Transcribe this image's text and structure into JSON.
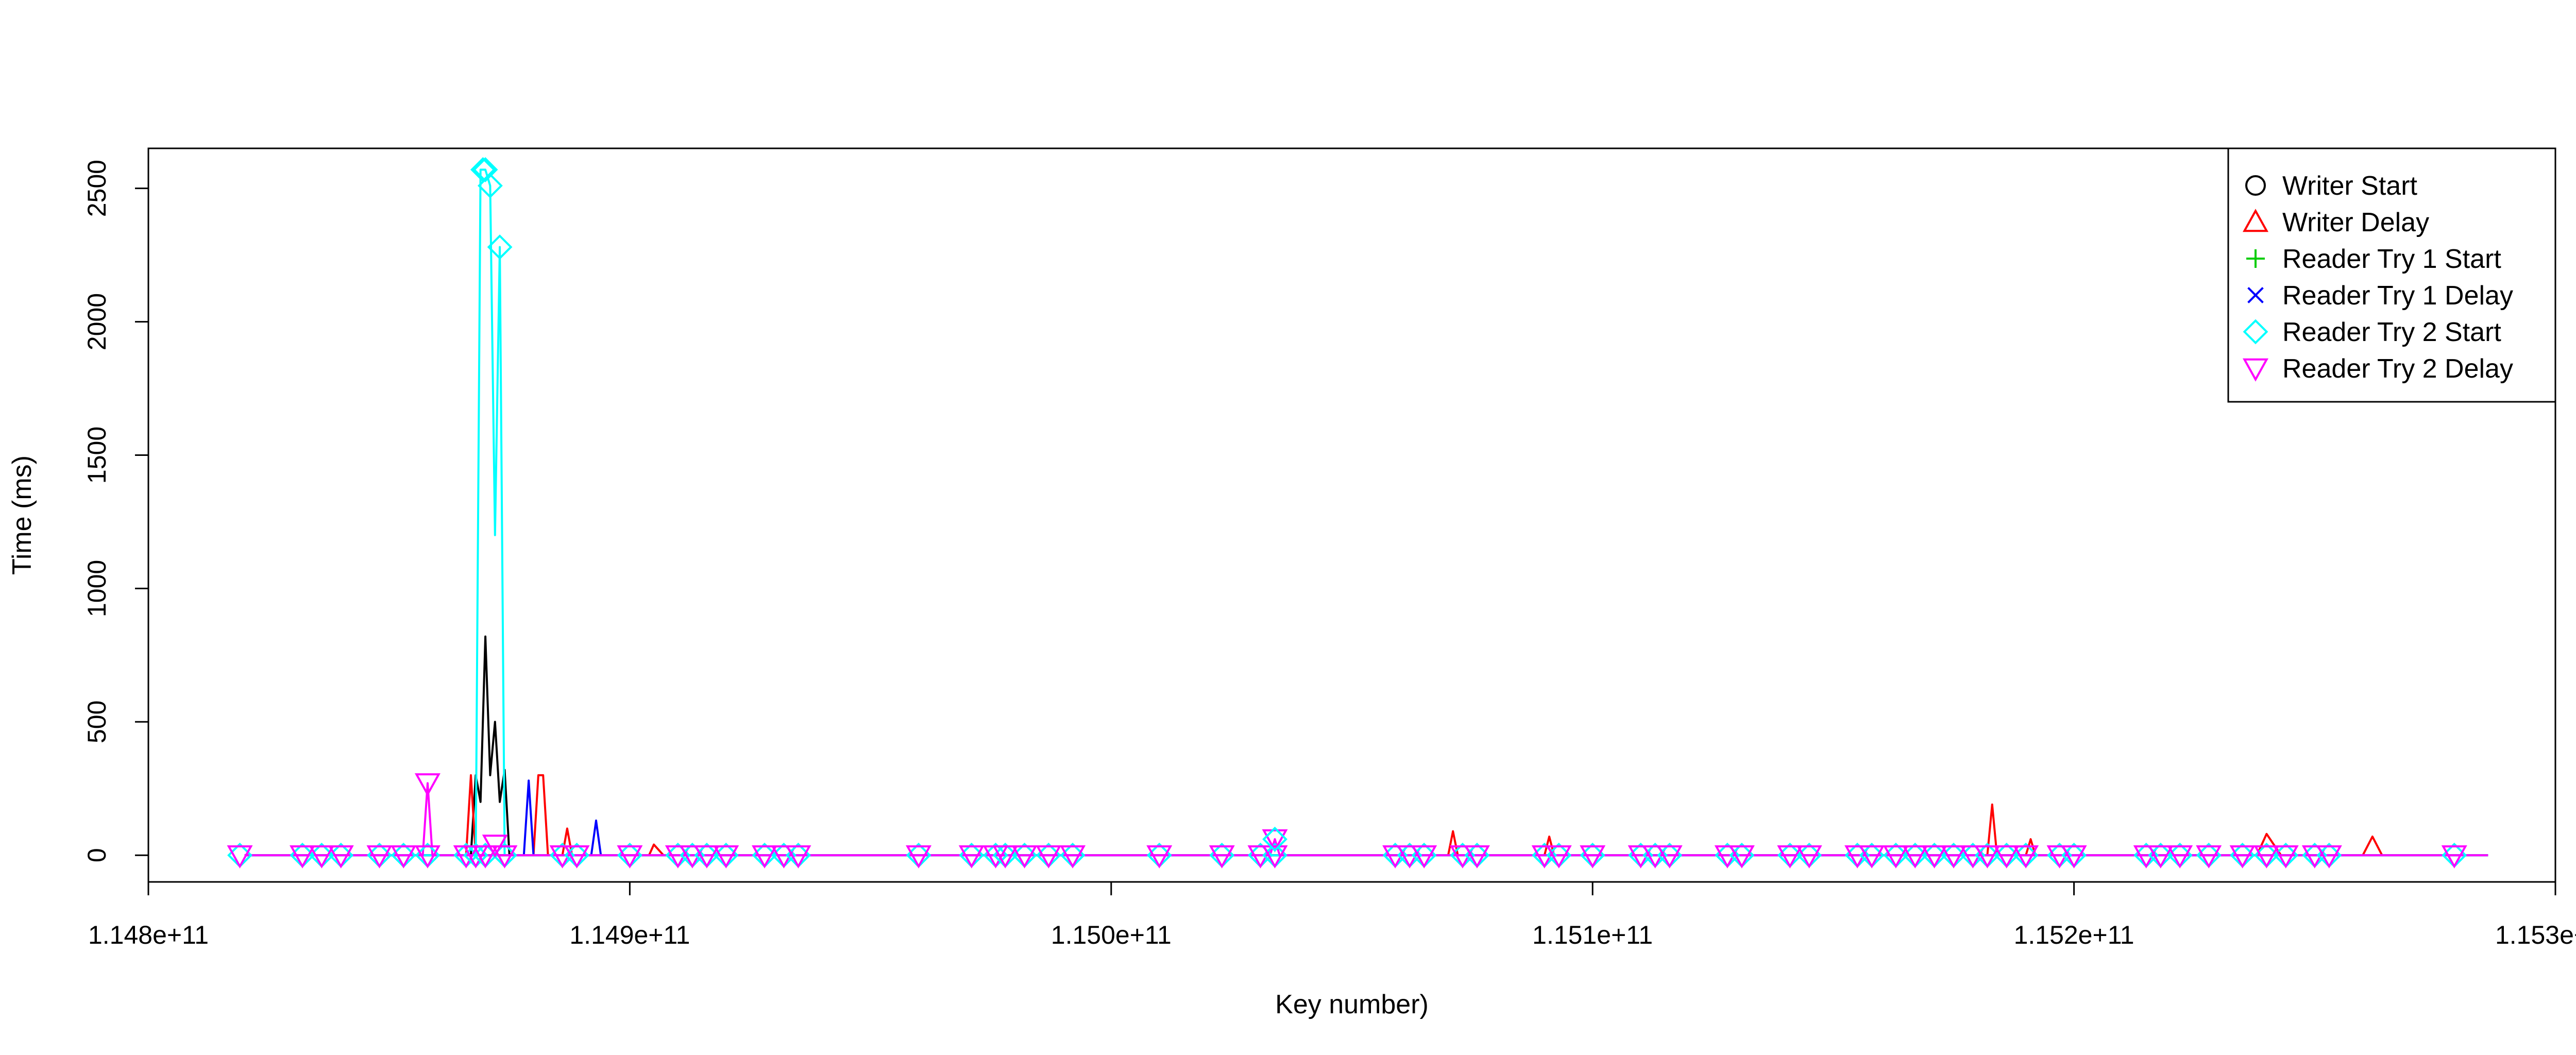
{
  "chart_data": {
    "type": "line",
    "title": "",
    "xlabel": "Key number)",
    "ylabel": "Time (ms)",
    "xlim": [
      114800000000,
      115300000000
    ],
    "ylim": [
      -100,
      2650
    ],
    "x_ticks": [
      114800000000,
      114900000000,
      115000000000,
      115100000000,
      115200000000,
      115300000000
    ],
    "x_tick_labels": [
      "1.148e+11",
      "1.149e+11",
      "1.150e+11",
      "1.151e+11",
      "1.152e+11",
      "1.153e+11"
    ],
    "y_ticks": [
      0,
      500,
      1000,
      1500,
      2000,
      2500
    ],
    "y_tick_labels": [
      "0",
      "500",
      "1000",
      "1500",
      "2000",
      "2500"
    ],
    "grid": false,
    "legend_position": "top-right",
    "series": [
      {
        "name": "Writer Start",
        "color": "#000000",
        "marker": "circle",
        "x": [
          114820000000,
          114867000000,
          114868000000,
          114869000000,
          114870000000,
          114871000000,
          114872000000,
          114873000000,
          114874000000,
          114875000000,
          114876000000,
          114880000000,
          114900000000,
          114950000000,
          115000000000,
          115050000000,
          115100000000,
          115150000000,
          115200000000,
          115250000000,
          115286000000
        ],
        "y": [
          0,
          0,
          300,
          200,
          820,
          300,
          500,
          200,
          320,
          0,
          0,
          0,
          0,
          0,
          0,
          0,
          0,
          0,
          0,
          0,
          0
        ]
      },
      {
        "name": "Writer Delay",
        "color": "#ff0000",
        "marker": "triangle",
        "x": [
          114820000000,
          114866000000,
          114867000000,
          114868000000,
          114869000000,
          114875000000,
          114880000000,
          114881000000,
          114882000000,
          114883000000,
          114886000000,
          114887000000,
          114888000000,
          114890000000,
          114904000000,
          114905000000,
          114906000000,
          114907000000,
          114950000000,
          115000000000,
          115070000000,
          115071000000,
          115072000000,
          115090000000,
          115091000000,
          115092000000,
          115150000000,
          115182000000,
          115183000000,
          115184000000,
          115190000000,
          115191000000,
          115192000000,
          115200000000,
          115238000000,
          115240000000,
          115243000000,
          115260000000,
          115262000000,
          115264000000,
          115286000000
        ],
        "y": [
          0,
          0,
          300,
          0,
          0,
          0,
          0,
          300,
          300,
          0,
          0,
          100,
          0,
          0,
          0,
          40,
          20,
          0,
          0,
          0,
          0,
          90,
          0,
          0,
          70,
          0,
          0,
          0,
          190,
          0,
          0,
          60,
          0,
          0,
          0,
          80,
          0,
          0,
          70,
          0,
          0
        ]
      },
      {
        "name": "Reader Try 1 Start",
        "color": "#00cd00",
        "marker": "plus",
        "x": [
          114820000000,
          114900000000,
          115000000000,
          115100000000,
          115200000000,
          115286000000
        ],
        "y": [
          0,
          0,
          0,
          0,
          0,
          0
        ]
      },
      {
        "name": "Reader Try 1 Delay",
        "color": "#0000ff",
        "marker": "cross",
        "x": [
          114820000000,
          114878000000,
          114879000000,
          114880000000,
          114892000000,
          114893000000,
          114894000000,
          114950000000,
          115000000000,
          115100000000,
          115200000000,
          115286000000
        ],
        "y": [
          0,
          0,
          280,
          0,
          0,
          130,
          0,
          0,
          0,
          0,
          0,
          0
        ]
      },
      {
        "name": "Reader Try 2 Start",
        "color": "#00ffff",
        "marker": "diamond",
        "x": [
          114820000000,
          114868000000,
          114869000000,
          114870000000,
          114871000000,
          114872000000,
          114873000000,
          114874000000,
          114875000000,
          114900000000,
          114950000000,
          115000000000,
          115100000000,
          115200000000,
          115286000000
        ],
        "y": [
          0,
          0,
          2570,
          2570,
          2510,
          1200,
          2280,
          0,
          0,
          0,
          0,
          0,
          0,
          0,
          0
        ]
      },
      {
        "name": "Reader Try 2 Delay",
        "color": "#ff00ff",
        "marker": "triangle-down",
        "x": [
          114820000000,
          114857000000,
          114858000000,
          114859000000,
          114865000000,
          114900000000,
          115033000000,
          115034000000,
          115035000000,
          115100000000,
          115200000000,
          115286000000
        ],
        "y": [
          0,
          0,
          270,
          0,
          0,
          0,
          0,
          60,
          0,
          0,
          0,
          0
        ]
      }
    ],
    "marker_points": [
      {
        "s": 4,
        "x": 114869500000,
        "y": 2570
      },
      {
        "s": 4,
        "x": 114870000000,
        "y": 2570
      },
      {
        "s": 4,
        "x": 114871000000,
        "y": 2510
      },
      {
        "s": 4,
        "x": 114873000000,
        "y": 2280
      },
      {
        "s": 5,
        "x": 114858000000,
        "y": 270
      },
      {
        "s": 5,
        "x": 115034000000,
        "y": 60
      },
      {
        "s": 5,
        "x": 114872000000,
        "y": 40
      },
      {
        "s": 4,
        "x": 115034000000,
        "y": 60
      }
    ],
    "baseline_marker_x": [
      114819000000,
      114832000000,
      114836000000,
      114840000000,
      114848000000,
      114853000000,
      114858000000,
      114866000000,
      114868000000,
      114870000000,
      114874000000,
      114886000000,
      114889000000,
      114900000000,
      114910000000,
      114913000000,
      114916000000,
      114920000000,
      114928000000,
      114932000000,
      114935000000,
      114960000000,
      114971000000,
      114976000000,
      114978000000,
      114982000000,
      114987000000,
      114992000000,
      115010000000,
      115023000000,
      115031000000,
      115034000000,
      115059000000,
      115062000000,
      115065000000,
      115073000000,
      115076000000,
      115090000000,
      115093000000,
      115100000000,
      115110000000,
      115113000000,
      115116000000,
      115128000000,
      115131000000,
      115141000000,
      115145000000,
      115155000000,
      115158000000,
      115163000000,
      115167000000,
      115171000000,
      115175000000,
      115179000000,
      115182000000,
      115186000000,
      115190000000,
      115197000000,
      115200000000,
      115215000000,
      115218000000,
      115222000000,
      115228000000,
      115235000000,
      115240000000,
      115244000000,
      115250000000,
      115253000000,
      115279000000
    ]
  },
  "legend": {
    "entries": [
      {
        "label": "Writer Start",
        "color": "#000000",
        "marker": "circle"
      },
      {
        "label": "Writer Delay",
        "color": "#ff0000",
        "marker": "triangle"
      },
      {
        "label": "Reader Try 1 Start",
        "color": "#00cd00",
        "marker": "plus"
      },
      {
        "label": "Reader Try 1 Delay",
        "color": "#0000ff",
        "marker": "cross"
      },
      {
        "label": "Reader Try 2 Start",
        "color": "#00ffff",
        "marker": "diamond"
      },
      {
        "label": "Reader Try 2 Delay",
        "color": "#ff00ff",
        "marker": "triangle-down"
      }
    ]
  }
}
